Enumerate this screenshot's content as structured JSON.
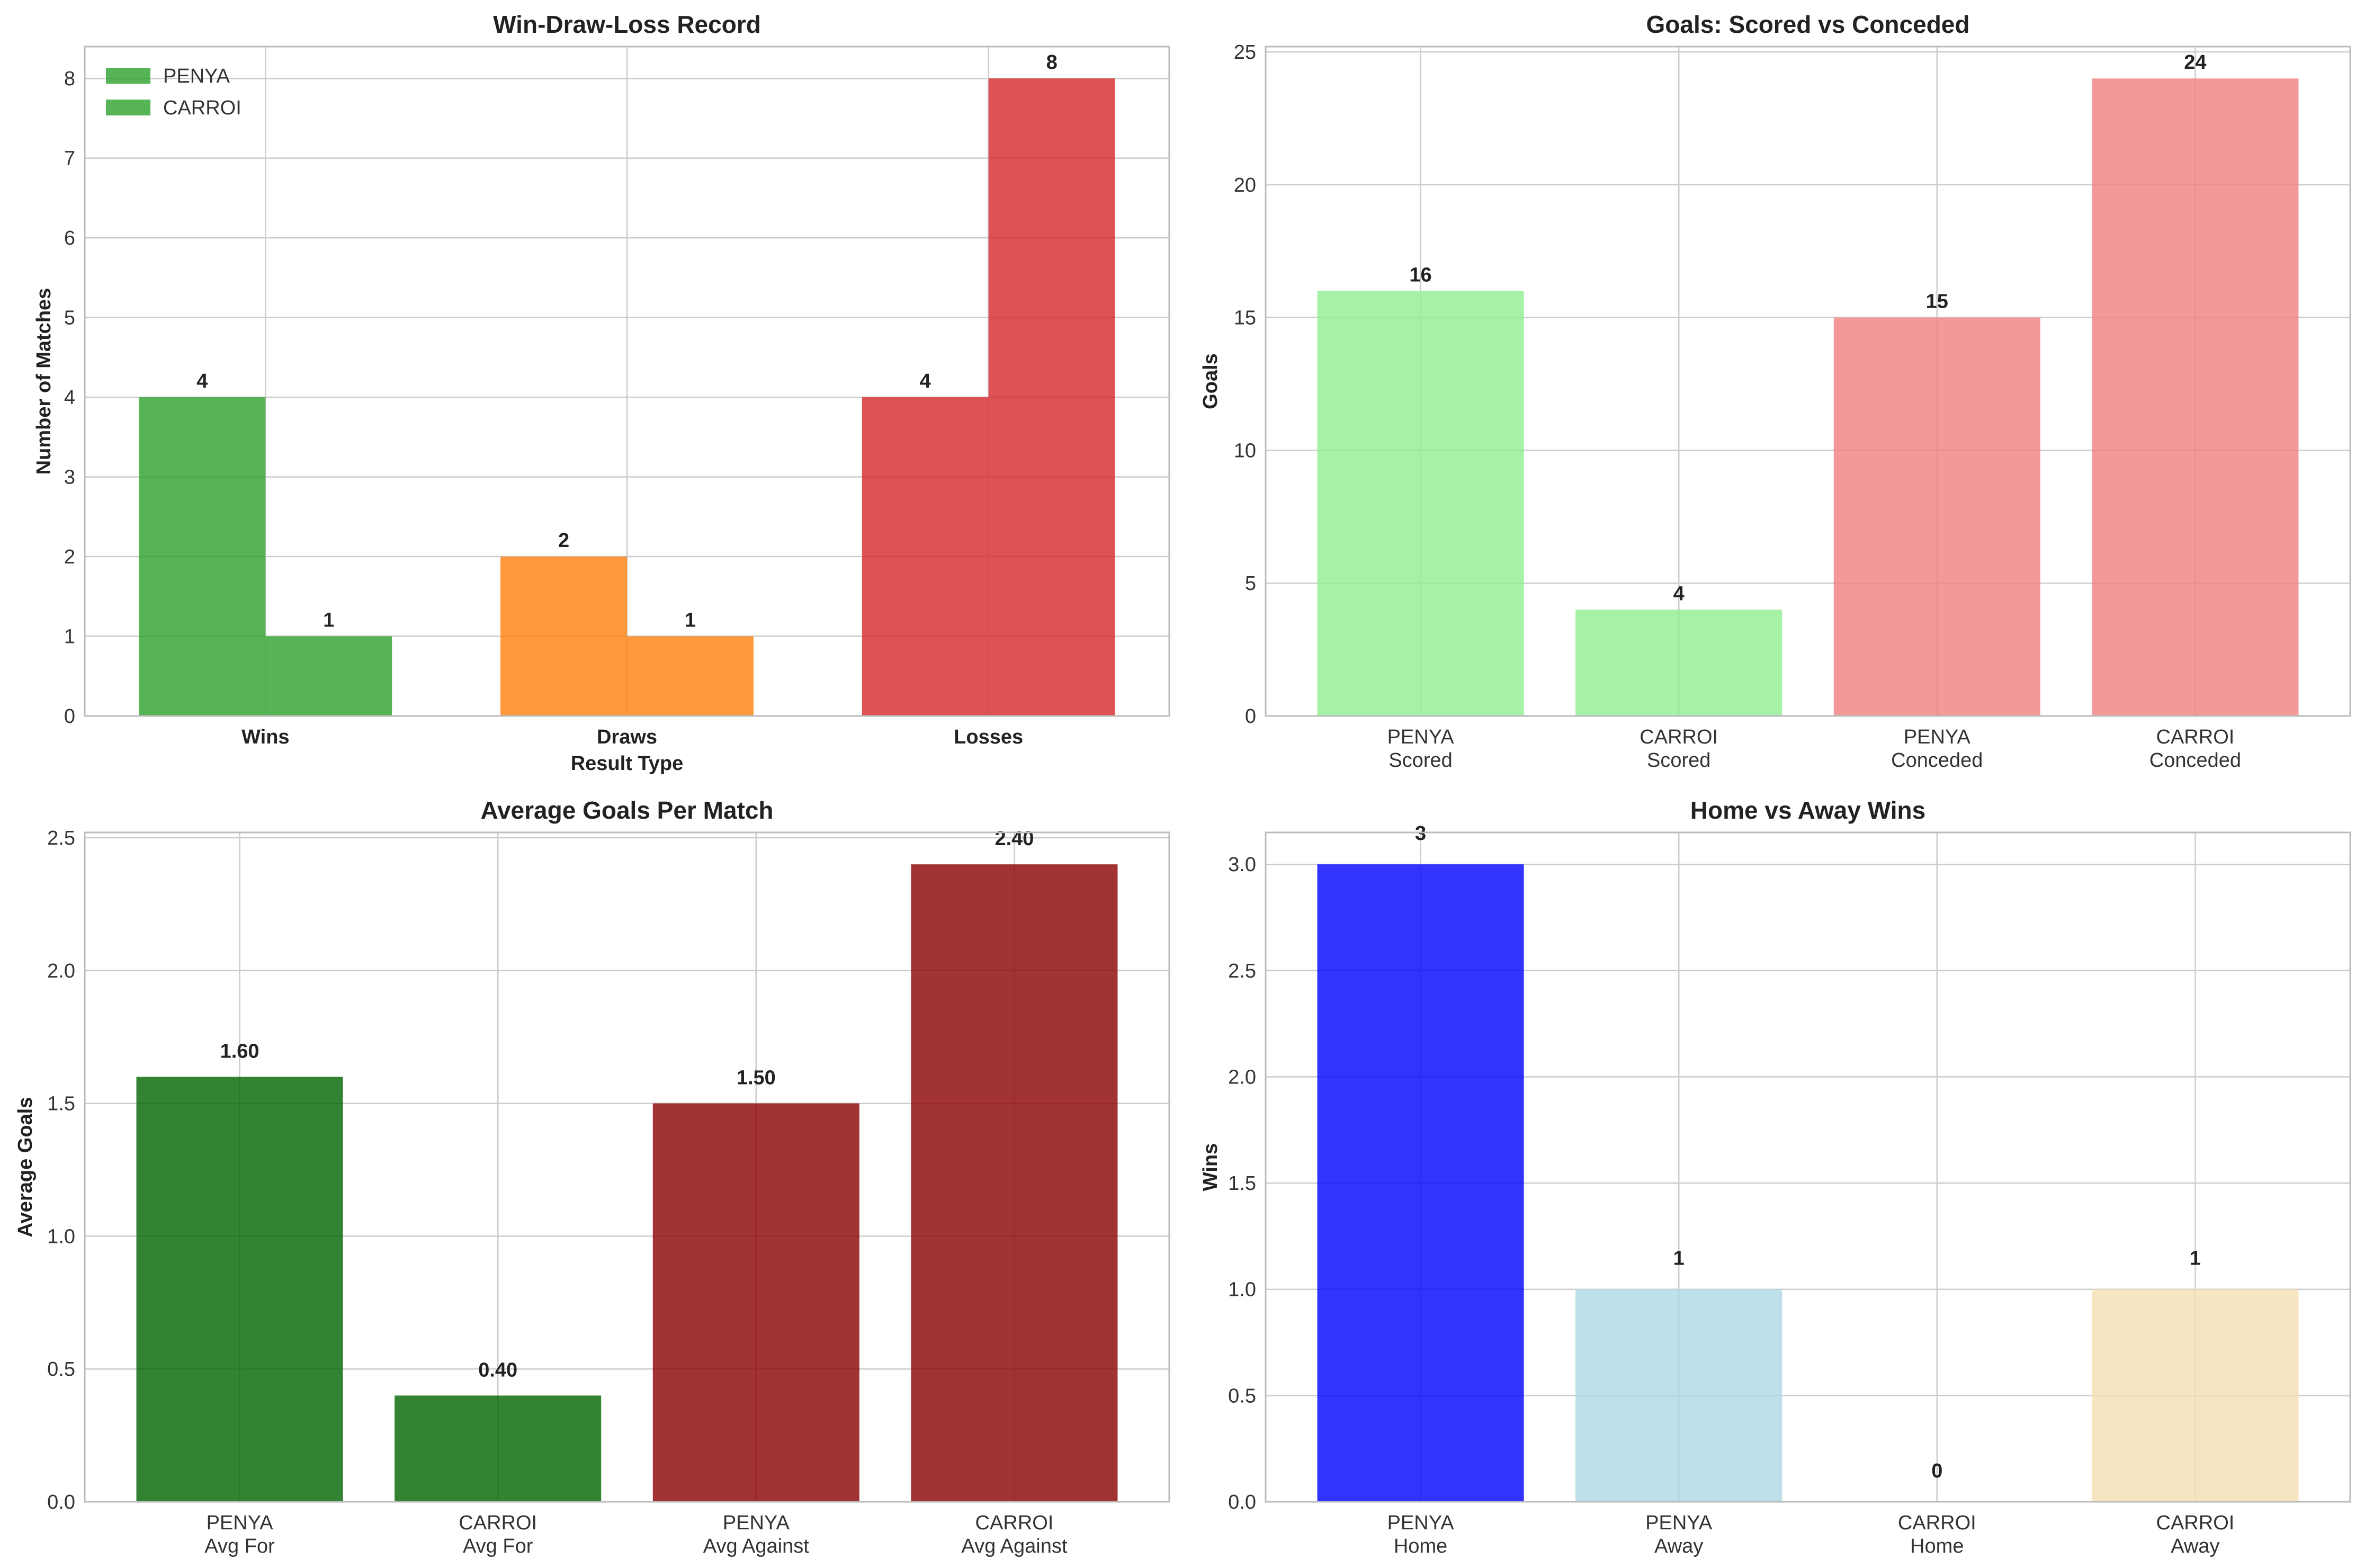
{
  "chart_data": [
    {
      "id": "p1",
      "type": "bar",
      "title": "Win-Draw-Loss Record",
      "xlabel": "Result Type",
      "ylabel": "Number of Matches",
      "categories": [
        "Wins",
        "Draws",
        "Losses"
      ],
      "series": [
        {
          "name": "PENYA",
          "values": [
            4,
            2,
            4
          ],
          "colors": [
            "#2ca02c",
            "#ff7f0e",
            "#d62728"
          ]
        },
        {
          "name": "CARROI",
          "values": [
            1,
            1,
            8
          ],
          "colors": [
            "#2ca02c",
            "#ff7f0e",
            "#d62728"
          ]
        }
      ],
      "value_labels": [
        [
          "4",
          "2",
          "4"
        ],
        [
          "1",
          "1",
          "8"
        ]
      ],
      "ylim": [
        0,
        8.4
      ],
      "yticks": [
        0,
        1,
        2,
        3,
        4,
        5,
        6,
        7,
        8
      ],
      "ytick_labels": [
        "0",
        "1",
        "2",
        "3",
        "4",
        "5",
        "6",
        "7",
        "8"
      ],
      "legend": {
        "placement": "top-left",
        "entries": [
          {
            "label": "PENYA",
            "color": "#2ca02c"
          },
          {
            "label": "CARROI",
            "color": "#2ca02c"
          }
        ]
      },
      "grid": true
    },
    {
      "id": "p2",
      "type": "bar",
      "title": "Goals: Scored vs Conceded",
      "xlabel": "",
      "ylabel": "Goals",
      "categories": [
        [
          "PENYA",
          "Scored"
        ],
        [
          "CARROI",
          "Scored"
        ],
        [
          "PENYA",
          "Conceded"
        ],
        [
          "CARROI",
          "Conceded"
        ]
      ],
      "values": [
        16,
        4,
        15,
        24
      ],
      "value_labels": [
        "16",
        "4",
        "15",
        "24"
      ],
      "colors": [
        "#90ee90",
        "#90ee90",
        "#f08080",
        "#f08080"
      ],
      "ylim": [
        0,
        25.2
      ],
      "yticks": [
        0,
        5,
        10,
        15,
        20,
        25
      ],
      "ytick_labels": [
        "0",
        "5",
        "10",
        "15",
        "20",
        "25"
      ],
      "grid": true
    },
    {
      "id": "p3",
      "type": "bar",
      "title": "Average Goals Per Match",
      "xlabel": "",
      "ylabel": "Average Goals",
      "categories": [
        [
          "PENYA",
          "Avg For"
        ],
        [
          "CARROI",
          "Avg For"
        ],
        [
          "PENYA",
          "Avg Against"
        ],
        [
          "CARROI",
          "Avg Against"
        ]
      ],
      "values": [
        1.6,
        0.4,
        1.5,
        2.4
      ],
      "value_labels": [
        "1.60",
        "0.40",
        "1.50",
        "2.40"
      ],
      "colors": [
        "#006400",
        "#006400",
        "#8b0000",
        "#8b0000"
      ],
      "ylim": [
        0,
        2.52
      ],
      "yticks": [
        0,
        0.5,
        1.0,
        1.5,
        2.0,
        2.5
      ],
      "ytick_labels": [
        "0.0",
        "0.5",
        "1.0",
        "1.5",
        "2.0",
        "2.5"
      ],
      "grid": true
    },
    {
      "id": "p4",
      "type": "bar",
      "title": "Home vs Away Wins",
      "xlabel": "",
      "ylabel": "Wins",
      "categories": [
        [
          "PENYA",
          "Home"
        ],
        [
          "PENYA",
          "Away"
        ],
        [
          "CARROI",
          "Home"
        ],
        [
          "CARROI",
          "Away"
        ]
      ],
      "values": [
        3,
        1,
        0,
        1
      ],
      "value_labels": [
        "3",
        "1",
        "0",
        "1"
      ],
      "colors": [
        "#0000ff",
        "#add8e6",
        "#ffa500",
        "#f5deb3"
      ],
      "ylim": [
        0,
        3.15
      ],
      "yticks": [
        0,
        0.5,
        1.0,
        1.5,
        2.0,
        2.5,
        3.0
      ],
      "ytick_labels": [
        "0.0",
        "0.5",
        "1.0",
        "1.5",
        "2.0",
        "2.5",
        "3.0"
      ],
      "grid": true
    }
  ]
}
